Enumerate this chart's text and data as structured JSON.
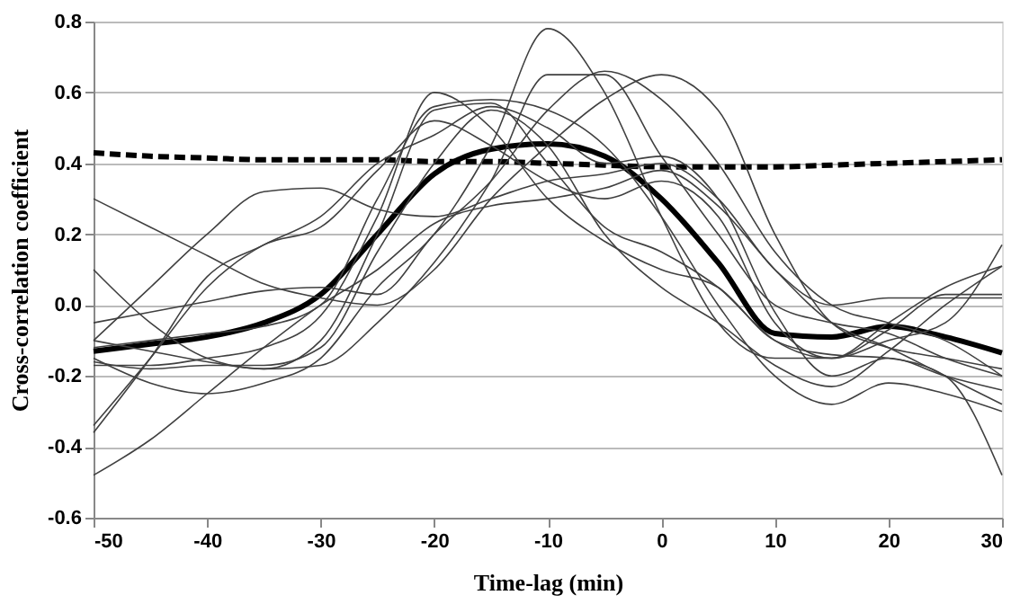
{
  "chart_data": {
    "type": "line",
    "xlabel": "Time-lag (min)",
    "ylabel": "Cross-correlation coefficient",
    "x": [
      -50,
      -45,
      -40,
      -35,
      -30,
      -25,
      -20,
      -15,
      -10,
      -5,
      0,
      5,
      10,
      15,
      20,
      25,
      30
    ],
    "xlim": [
      -50,
      30
    ],
    "xticks": [
      -50,
      -40,
      -30,
      -20,
      -10,
      0,
      10,
      20,
      30
    ],
    "ylim": [
      -0.6,
      0.8
    ],
    "yticks": [
      -0.6,
      -0.4,
      -0.2,
      {
        "value": 0,
        "label": "0.0"
      },
      0.2,
      0.4,
      0.6,
      0.8
    ],
    "grid": "y",
    "marker": "none",
    "series": [
      {
        "color": "#000000",
        "line_style": "dashed",
        "values": [
          0.43,
          0.42,
          0.415,
          0.41,
          0.41,
          0.41,
          0.405,
          0.405,
          0.4,
          0.395,
          0.39,
          0.39,
          0.39,
          0.395,
          0.4,
          0.405,
          0.41
        ]
      },
      {
        "color": "#000000",
        "line_style": "solid",
        "values": [
          -0.13,
          -0.11,
          -0.09,
          -0.05,
          0.03,
          0.2,
          0.37,
          0.44,
          0.455,
          0.42,
          0.3,
          0.12,
          -0.08,
          -0.09,
          -0.06,
          -0.09,
          -0.135
        ]
      },
      {
        "color": "#404040",
        "values": [
          0.3,
          0.22,
          0.14,
          0.06,
          0.02,
          0.0,
          0.1,
          0.3,
          0.45,
          0.58,
          0.65,
          0.55,
          0.2,
          -0.05,
          -0.12,
          -0.15,
          -0.18
        ]
      },
      {
        "color": "#404040",
        "values": [
          0.1,
          -0.05,
          -0.15,
          -0.18,
          -0.1,
          0.2,
          0.55,
          0.57,
          0.4,
          0.22,
          0.15,
          0.05,
          -0.1,
          -0.15,
          -0.05,
          0.05,
          0.11
        ]
      },
      {
        "color": "#404040",
        "values": [
          -0.05,
          -0.02,
          0.01,
          0.04,
          0.05,
          0.03,
          0.2,
          0.35,
          0.55,
          0.66,
          0.58,
          0.4,
          0.15,
          0.0,
          -0.05,
          -0.1,
          -0.2
        ]
      },
      {
        "color": "#404040",
        "values": [
          -0.1,
          0.05,
          0.2,
          0.32,
          0.33,
          0.27,
          0.25,
          0.3,
          0.35,
          0.37,
          0.4,
          0.3,
          0.1,
          0.0,
          0.02,
          0.02,
          0.02
        ]
      },
      {
        "color": "#404040",
        "values": [
          -0.34,
          -0.15,
          0.05,
          0.17,
          0.22,
          0.38,
          0.52,
          0.45,
          0.35,
          0.3,
          0.35,
          0.25,
          -0.05,
          -0.15,
          -0.07,
          0.03,
          0.03
        ]
      },
      {
        "color": "#404040",
        "values": [
          -0.36,
          -0.15,
          0.08,
          0.17,
          0.25,
          0.4,
          0.48,
          0.56,
          0.5,
          0.4,
          0.42,
          0.3,
          -0.02,
          -0.2,
          -0.15,
          -0.2,
          -0.24
        ]
      },
      {
        "color": "#404040",
        "values": [
          -0.48,
          -0.38,
          -0.25,
          -0.12,
          0.0,
          0.1,
          0.23,
          0.28,
          0.3,
          0.33,
          0.38,
          0.28,
          0.1,
          -0.05,
          -0.12,
          -0.2,
          -0.28
        ]
      },
      {
        "color": "#404040",
        "values": [
          -0.15,
          -0.22,
          -0.25,
          -0.22,
          -0.15,
          0.05,
          0.2,
          0.45,
          0.78,
          0.6,
          0.25,
          -0.05,
          -0.15,
          -0.15,
          -0.1,
          -0.05,
          0.17
        ]
      },
      {
        "color": "#404040",
        "values": [
          -0.16,
          -0.18,
          -0.17,
          -0.17,
          -0.12,
          0.15,
          0.4,
          0.55,
          0.45,
          0.2,
          0.05,
          -0.05,
          -0.17,
          -0.23,
          -0.13,
          0.0,
          0.11
        ]
      },
      {
        "color": "#404040",
        "values": [
          -0.17,
          -0.17,
          -0.15,
          -0.12,
          -0.03,
          0.25,
          0.6,
          0.5,
          0.3,
          0.18,
          0.1,
          0.05,
          -0.1,
          -0.14,
          -0.15,
          -0.2,
          -0.48
        ]
      },
      {
        "color": "#404040",
        "values": [
          -0.12,
          -0.1,
          -0.08,
          -0.06,
          0.0,
          0.3,
          0.56,
          0.58,
          0.55,
          0.45,
          0.25,
          0.0,
          -0.2,
          -0.28,
          -0.22,
          -0.25,
          -0.3
        ]
      },
      {
        "color": "#404040",
        "values": [
          -0.1,
          -0.13,
          -0.16,
          -0.18,
          -0.17,
          -0.05,
          0.12,
          0.35,
          0.65,
          0.65,
          0.42,
          0.2,
          0.0,
          -0.05,
          -0.08,
          -0.15,
          -0.2
        ]
      }
    ]
  }
}
